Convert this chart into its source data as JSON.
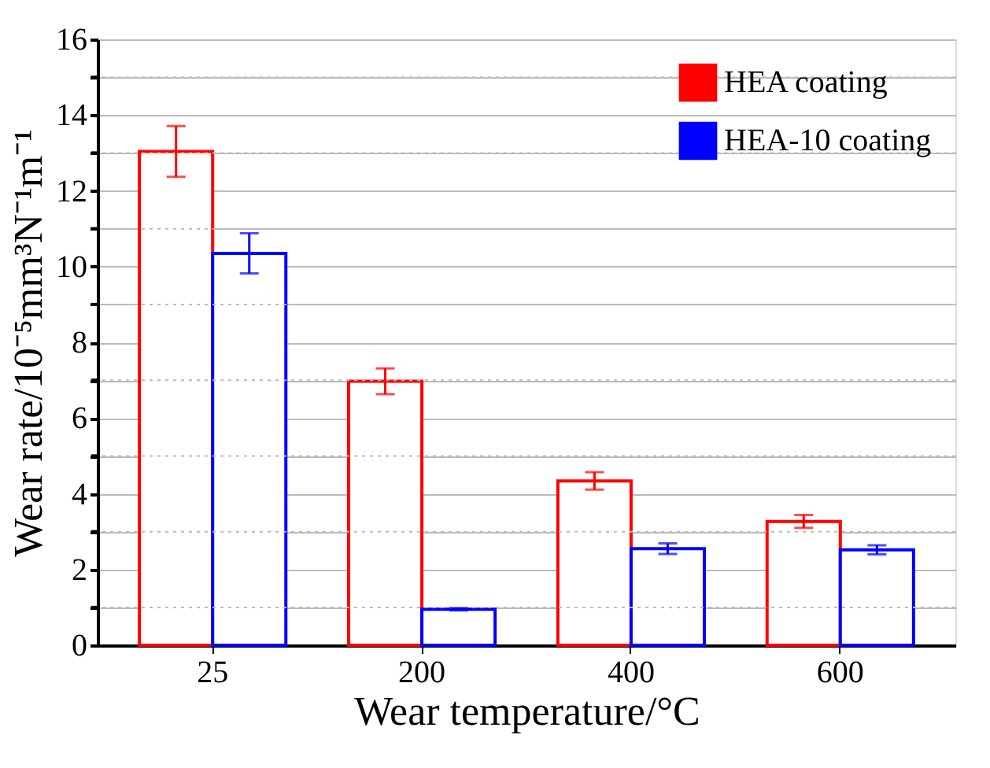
{
  "chart_data": {
    "type": "bar",
    "xlabel": "Wear temperature/°C",
    "ylabel": "Wear rate/10⁻⁵mm³N⁻¹m⁻¹",
    "categories": [
      "25",
      "200",
      "400",
      "600"
    ],
    "series": [
      {
        "name": "HEA coating",
        "color": "#ff0000",
        "values": [
          13.04,
          6.97,
          4.34,
          3.27
        ],
        "errors": [
          0.67,
          0.34,
          0.23,
          0.17
        ]
      },
      {
        "name": "HEA-10 coating",
        "color": "#0000ff",
        "values": [
          10.35,
          0.95,
          2.55,
          2.52
        ],
        "errors": [
          0.53,
          0.03,
          0.14,
          0.12
        ]
      }
    ],
    "ylim": [
      0,
      16
    ],
    "yticks": [
      0,
      {
        "value": 1,
        "label": null
      },
      2,
      {
        "value": 3,
        "label": null
      },
      4,
      {
        "value": 5,
        "label": null
      },
      6,
      {
        "value": 7,
        "label": null
      },
      8,
      {
        "value": 9,
        "label": null
      },
      10,
      {
        "value": 11,
        "label": null
      },
      12,
      {
        "value": 13,
        "label": null
      },
      14,
      {
        "value": 15,
        "label": null
      },
      16
    ],
    "grid": "y",
    "legend": "top right"
  }
}
